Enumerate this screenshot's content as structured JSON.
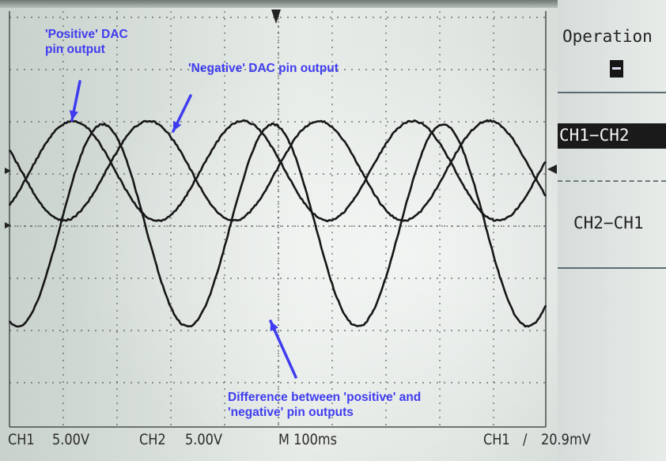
{
  "menu": {
    "title": "Operation",
    "current_value": "−",
    "options": [
      "CH1−CH2",
      "CH2−CH1"
    ],
    "selected_index": 0
  },
  "status_bar": {
    "ch1_label": "CH1",
    "ch1_scale": "5.00V",
    "ch2_label": "CH2",
    "ch2_scale": "5.00V",
    "timebase": "M 100ms",
    "trigger_source": "CH1",
    "trigger_symbol": "∕",
    "trigger_level": "20.9mV"
  },
  "annotations": {
    "positive": [
      "'Positive' DAC",
      "pin output"
    ],
    "negative": "'Negative' DAC pin output",
    "difference": [
      "Difference between 'positive' and",
      "'negative' pin outputs"
    ]
  },
  "colors": {
    "annotation": "#3f3cf0",
    "trace": "#161616",
    "grid": "#4a4f4c"
  }
}
